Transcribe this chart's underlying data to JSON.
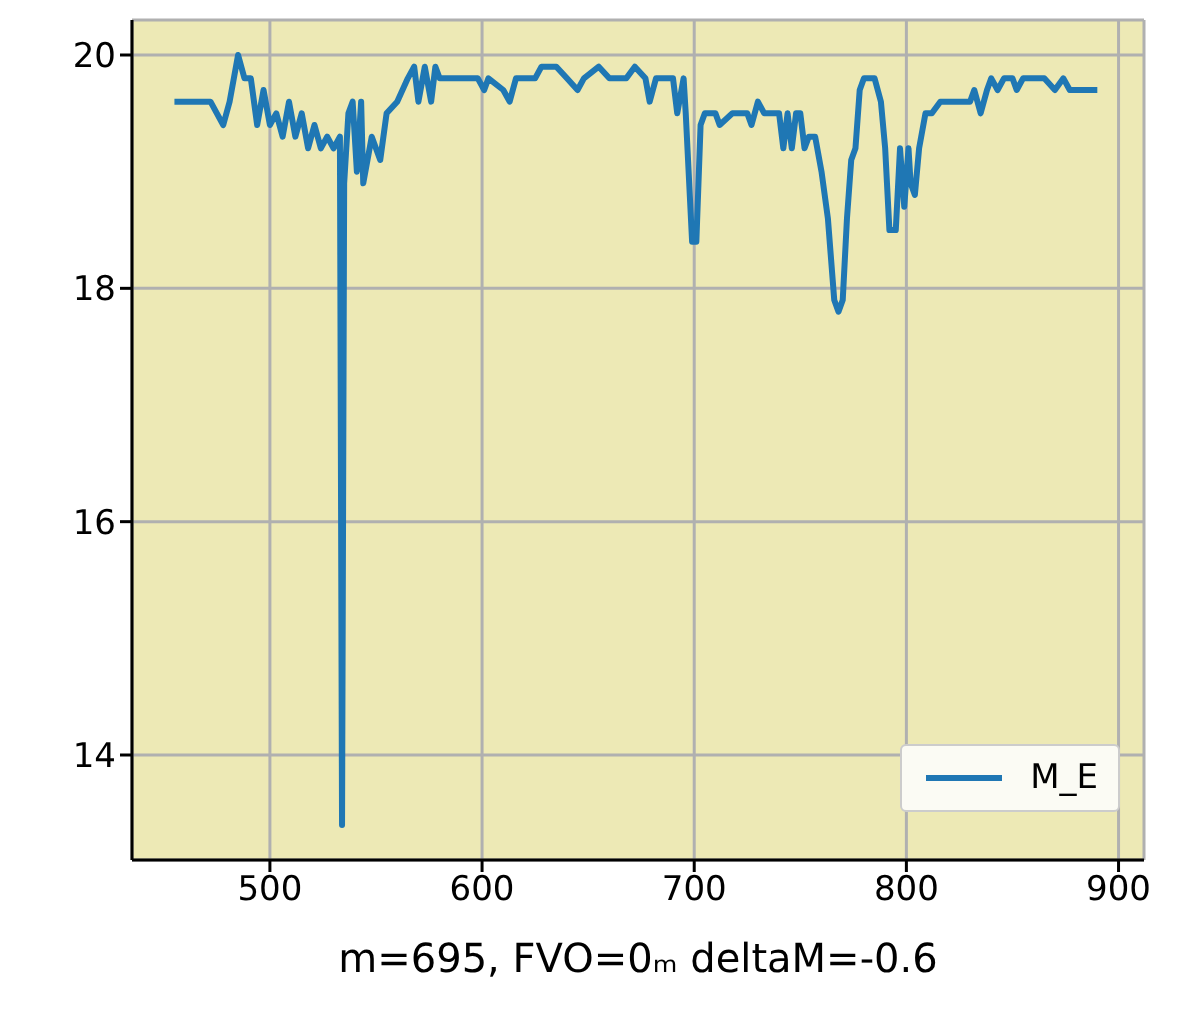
{
  "chart_data": {
    "type": "line",
    "xlabel": "m=695, FVO=0ₘ deltaM=-0.6",
    "xlim": [
      435,
      912
    ],
    "xticks": [
      500,
      600,
      700,
      800,
      900
    ],
    "ylim": [
      13.1,
      20.3
    ],
    "yticks": [
      14,
      16,
      18,
      20
    ],
    "grid": true,
    "legend": "bottom right",
    "marker": "none",
    "line_style": "solid",
    "x": [
      455,
      472,
      475,
      478,
      481,
      485,
      488,
      491,
      494,
      497,
      500,
      503,
      506,
      509,
      512,
      515,
      518,
      521,
      524,
      527,
      530,
      533,
      534,
      535,
      537,
      539,
      541,
      543,
      544,
      548,
      552,
      555,
      560,
      565,
      568,
      570,
      573,
      576,
      578,
      580,
      598,
      601,
      603,
      610,
      613,
      616,
      625,
      628,
      635,
      640,
      645,
      648,
      655,
      660,
      668,
      672,
      677,
      679,
      682,
      690,
      692,
      695,
      696,
      699,
      701,
      703,
      705,
      710,
      712,
      718,
      725,
      727,
      730,
      733,
      740,
      742,
      744,
      746,
      748,
      750,
      752,
      754,
      757,
      760,
      763,
      766,
      768,
      770,
      772,
      774,
      776,
      778,
      780,
      785,
      788,
      790,
      792,
      795,
      797,
      799,
      801,
      802,
      804,
      806,
      809,
      812,
      816,
      820,
      830,
      832,
      835,
      838,
      840,
      843,
      846,
      850,
      852,
      855,
      860,
      865,
      870,
      874,
      877,
      880,
      890
    ],
    "series": [
      {
        "name": "M_E",
        "color": "#1f77b4",
        "values": [
          19.6,
          19.6,
          19.5,
          19.4,
          19.6,
          20.0,
          19.8,
          19.8,
          19.4,
          19.7,
          19.4,
          19.5,
          19.3,
          19.6,
          19.3,
          19.5,
          19.2,
          19.4,
          19.2,
          19.3,
          19.2,
          19.3,
          13.4,
          18.9,
          19.5,
          19.6,
          19.0,
          19.6,
          18.9,
          19.3,
          19.1,
          19.5,
          19.6,
          19.8,
          19.9,
          19.6,
          19.9,
          19.6,
          19.9,
          19.8,
          19.8,
          19.7,
          19.8,
          19.7,
          19.6,
          19.8,
          19.8,
          19.9,
          19.9,
          19.8,
          19.7,
          19.8,
          19.9,
          19.8,
          19.8,
          19.9,
          19.8,
          19.6,
          19.8,
          19.8,
          19.5,
          19.8,
          19.5,
          18.4,
          18.4,
          19.4,
          19.5,
          19.5,
          19.4,
          19.5,
          19.5,
          19.4,
          19.6,
          19.5,
          19.5,
          19.2,
          19.5,
          19.2,
          19.5,
          19.5,
          19.2,
          19.3,
          19.3,
          19.0,
          18.6,
          17.9,
          17.8,
          17.9,
          18.6,
          19.1,
          19.2,
          19.7,
          19.8,
          19.8,
          19.6,
          19.2,
          18.5,
          18.5,
          19.2,
          18.7,
          19.2,
          18.9,
          18.8,
          19.2,
          19.5,
          19.5,
          19.6,
          19.6,
          19.6,
          19.7,
          19.5,
          19.7,
          19.8,
          19.7,
          19.8,
          19.8,
          19.7,
          19.8,
          19.8,
          19.8,
          19.7,
          19.8,
          19.7,
          19.7,
          19.7
        ]
      }
    ]
  }
}
